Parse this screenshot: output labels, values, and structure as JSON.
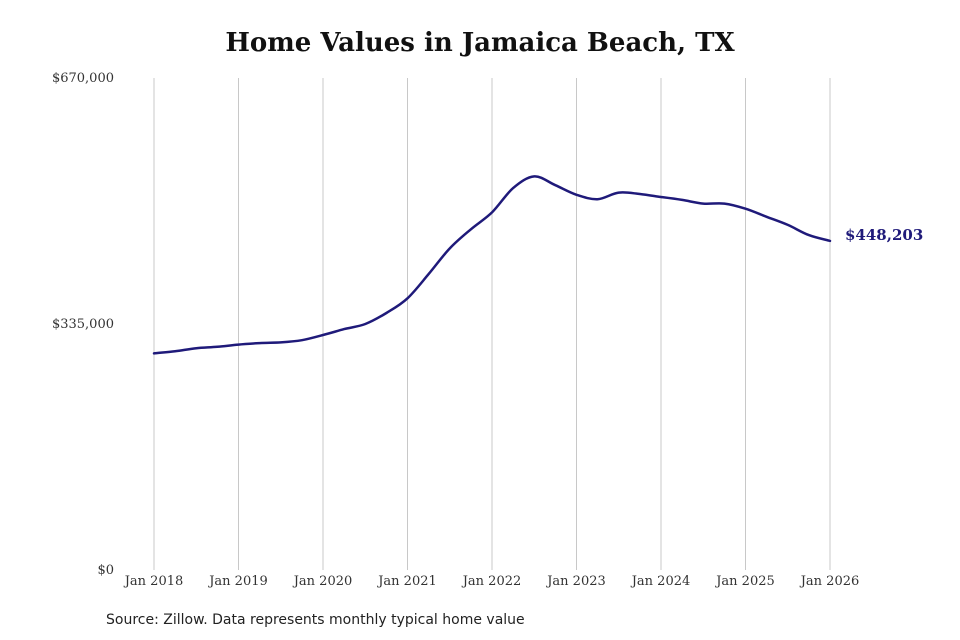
{
  "chart_data": {
    "type": "line",
    "title": "Home Values in Jamaica Beach, TX",
    "source": "Source: Zillow. Data represents monthly typical home value",
    "y_tick_labels": [
      "$0",
      "$335,000",
      "$670,000"
    ],
    "y_ticks": [
      0,
      335000,
      670000
    ],
    "ylim": [
      0,
      670000
    ],
    "x_tick_labels": [
      "Jan 2018",
      "Jan 2019",
      "Jan 2020",
      "Jan 2021",
      "Jan 2022",
      "Jan 2023",
      "Jan 2024",
      "Jan 2025",
      "Jan 2026"
    ],
    "x_ticks": [
      "2018-01",
      "2019-01",
      "2020-01",
      "2021-01",
      "2022-01",
      "2023-01",
      "2024-01",
      "2025-01",
      "2026-01"
    ],
    "xlim": [
      "2018-01",
      "2026-01"
    ],
    "grid": "vertical",
    "series": [
      {
        "color": "#1f1a7a",
        "end_label": "$448,203",
        "points": [
          {
            "x": "2018-01",
            "y": 295000
          },
          {
            "x": "2018-04",
            "y": 298000
          },
          {
            "x": "2018-07",
            "y": 302000
          },
          {
            "x": "2018-10",
            "y": 304000
          },
          {
            "x": "2019-01",
            "y": 307000
          },
          {
            "x": "2019-04",
            "y": 309000
          },
          {
            "x": "2019-07",
            "y": 310000
          },
          {
            "x": "2019-10",
            "y": 313000
          },
          {
            "x": "2020-01",
            "y": 320000
          },
          {
            "x": "2020-04",
            "y": 328000
          },
          {
            "x": "2020-07",
            "y": 335000
          },
          {
            "x": "2020-10",
            "y": 350000
          },
          {
            "x": "2021-01",
            "y": 370000
          },
          {
            "x": "2021-04",
            "y": 403000
          },
          {
            "x": "2021-07",
            "y": 438000
          },
          {
            "x": "2021-10",
            "y": 464000
          },
          {
            "x": "2022-01",
            "y": 487000
          },
          {
            "x": "2022-04",
            "y": 520000
          },
          {
            "x": "2022-07",
            "y": 536000
          },
          {
            "x": "2022-10",
            "y": 524000
          },
          {
            "x": "2023-01",
            "y": 511000
          },
          {
            "x": "2023-04",
            "y": 505000
          },
          {
            "x": "2023-07",
            "y": 514000
          },
          {
            "x": "2023-10",
            "y": 512000
          },
          {
            "x": "2024-01",
            "y": 508000
          },
          {
            "x": "2024-04",
            "y": 504000
          },
          {
            "x": "2024-07",
            "y": 499000
          },
          {
            "x": "2024-10",
            "y": 499000
          },
          {
            "x": "2025-01",
            "y": 492000
          },
          {
            "x": "2025-04",
            "y": 481000
          },
          {
            "x": "2025-07",
            "y": 470000
          },
          {
            "x": "2025-10",
            "y": 456000
          },
          {
            "x": "2026-01",
            "y": 448203
          }
        ]
      }
    ]
  }
}
